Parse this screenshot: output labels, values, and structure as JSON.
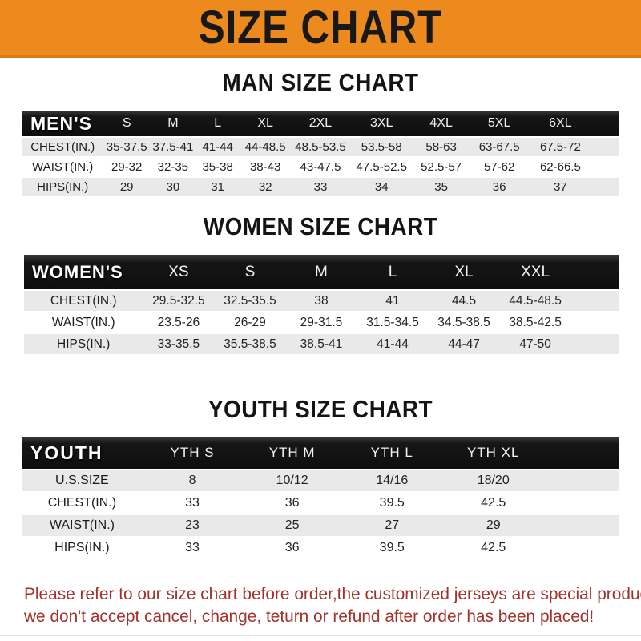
{
  "banner": {
    "title": "SIZE CHART",
    "bg_color": "#EC8A1E"
  },
  "tables": {
    "men": {
      "heading": "MAN SIZE CHART",
      "label": "MEN'S",
      "columns": [
        "S",
        "M",
        "L",
        "XL",
        "2XL",
        "3XL",
        "4XL",
        "5XL",
        "6XL"
      ],
      "rows": [
        {
          "label": "CHEST(IN.)",
          "values": [
            "35-37.5",
            "37.5-41",
            "41-44",
            "44-48.5",
            "48.5-53.5",
            "53.5-58",
            "58-63",
            "63-67.5",
            "67.5-72"
          ]
        },
        {
          "label": "WAIST(IN.)",
          "values": [
            "29-32",
            "32-35",
            "35-38",
            "38-43",
            "43-47.5",
            "47.5-52.5",
            "52.5-57",
            "57-62",
            "62-66.5"
          ]
        },
        {
          "label": "HIPS(IN.)",
          "values": [
            "29",
            "30",
            "31",
            "32",
            "33",
            "34",
            "35",
            "36",
            "37"
          ]
        }
      ]
    },
    "women": {
      "heading": "WOMEN SIZE CHART",
      "label": "WOMEN'S",
      "columns": [
        "XS",
        "S",
        "M",
        "L",
        "XL",
        "XXL"
      ],
      "rows": [
        {
          "label": "CHEST(IN.)",
          "values": [
            "29.5-32.5",
            "32.5-35.5",
            "38",
            "41",
            "44.5",
            "44.5-48.5"
          ]
        },
        {
          "label": "WAIST(IN.)",
          "values": [
            "23.5-26",
            "26-29",
            "29-31.5",
            "31.5-34.5",
            "34.5-38.5",
            "38.5-42.5"
          ]
        },
        {
          "label": "HIPS(IN.)",
          "values": [
            "33-35.5",
            "35.5-38.5",
            "38.5-41",
            "41-44",
            "44-47",
            "47-50"
          ]
        }
      ]
    },
    "youth": {
      "heading": "YOUTH SIZE CHART",
      "label": "YOUTH",
      "columns": [
        "YTH S",
        "YTH M",
        "YTH L",
        "YTH XL"
      ],
      "rows": [
        {
          "label": "U.S.SIZE",
          "values": [
            "8",
            "10/12",
            "14/16",
            "18/20"
          ]
        },
        {
          "label": "CHEST(IN.)",
          "values": [
            "33",
            "36",
            "39.5",
            "42.5"
          ]
        },
        {
          "label": "WAIST(IN.)",
          "values": [
            "23",
            "25",
            "27",
            "29"
          ]
        },
        {
          "label": "HIPS(IN.)",
          "values": [
            "33",
            "36",
            "39.5",
            "42.5"
          ]
        }
      ]
    }
  },
  "footer": {
    "line1": "Please refer to our size chart before order,the customized jerseys are special products,",
    "line2": "we don't accept cancel, change, teturn or refund after order has been placed!",
    "color": "#A3322A"
  },
  "colors": {
    "banner_orange": "#EC8A1E",
    "header_bar_black": "#141414",
    "row_stripe_gray": "#E9E9E9",
    "note_red": "#A3322A"
  }
}
